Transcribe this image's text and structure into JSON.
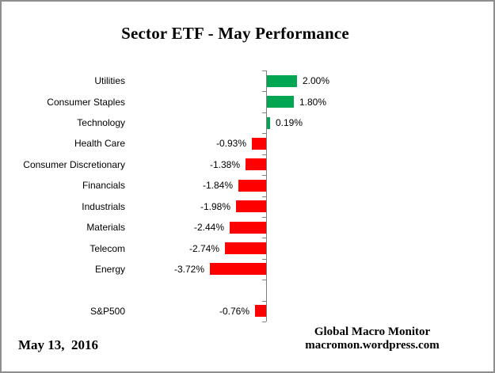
{
  "window": {
    "background": "#ffffff",
    "border_color": "#8e8e8e"
  },
  "header": {
    "title": "Sector ETF - May Performance"
  },
  "footer": {
    "date": "May 13,  2016",
    "brand_line1": "Global Macro Monitor",
    "brand_line2": "macromon.wordpress.com"
  },
  "colors": {
    "positive_bar": "#00A651",
    "negative_bar": "#FF0000",
    "axis": "#808080",
    "text": "#000000"
  },
  "chart_data": {
    "type": "bar",
    "orientation": "horizontal",
    "title": "Sector ETF - May Performance",
    "categories": [
      "Utilities",
      "Consumer Staples",
      "Technology",
      "Health Care",
      "Consumer Discretionary",
      "Financials",
      "Industrials",
      "Materials",
      "Telecom",
      "Energy",
      "",
      "S&P500"
    ],
    "values": [
      2.0,
      1.8,
      0.19,
      -0.93,
      -1.38,
      -1.84,
      -1.98,
      -2.44,
      -2.74,
      -3.72,
      null,
      -0.76
    ],
    "value_labels": [
      "2.00%",
      "1.80%",
      "0.19%",
      "-0.93%",
      "-1.38%",
      "-1.84%",
      "-1.98%",
      "-2.44%",
      "-2.74%",
      "-3.72%",
      "",
      "-0.76%"
    ],
    "units": "%",
    "xlim": [
      -4.5,
      3.0
    ],
    "grid": false,
    "legend": false,
    "data_labels": "outside-end",
    "positive_color": "#00A651",
    "negative_color": "#FF0000"
  }
}
